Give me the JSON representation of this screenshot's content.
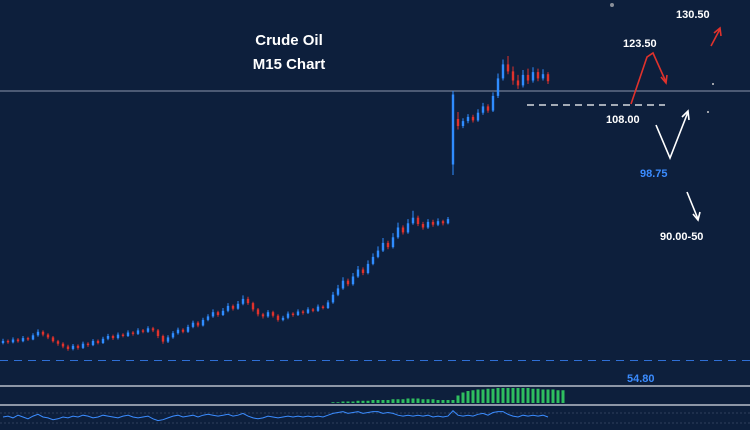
{
  "chart_data": {
    "type": "candlestick",
    "title": "Crude Oil",
    "subtitle": "M15 Chart",
    "colors": {
      "background": "#0d1f3c",
      "bull": "#2f8cff",
      "bear": "#e0322c",
      "arrow_up": "#e0322c",
      "arrow_down": "#ffffff",
      "macd_histogram": "#2fbf5f",
      "indicator_line": "#3b8cff"
    },
    "ylim": [
      30,
      140
    ],
    "candles": [
      {
        "o": 42.0,
        "c": 42.6,
        "h": 43.2,
        "l": 41.6
      },
      {
        "o": 42.6,
        "c": 42.2,
        "h": 43.0,
        "l": 41.8
      },
      {
        "o": 42.2,
        "c": 43.0,
        "h": 43.6,
        "l": 41.9
      },
      {
        "o": 43.0,
        "c": 42.5,
        "h": 43.4,
        "l": 42.1
      },
      {
        "o": 42.5,
        "c": 43.4,
        "h": 44.0,
        "l": 42.2
      },
      {
        "o": 43.4,
        "c": 43.0,
        "h": 43.8,
        "l": 42.6
      },
      {
        "o": 43.0,
        "c": 44.2,
        "h": 44.8,
        "l": 42.8
      },
      {
        "o": 44.2,
        "c": 45.2,
        "h": 45.9,
        "l": 43.8
      },
      {
        "o": 45.2,
        "c": 44.4,
        "h": 45.6,
        "l": 43.9
      },
      {
        "o": 44.4,
        "c": 43.6,
        "h": 44.8,
        "l": 43.1
      },
      {
        "o": 43.6,
        "c": 42.5,
        "h": 44.0,
        "l": 42.1
      },
      {
        "o": 42.5,
        "c": 41.8,
        "h": 42.9,
        "l": 41.2
      },
      {
        "o": 41.8,
        "c": 41.0,
        "h": 42.2,
        "l": 40.5
      },
      {
        "o": 41.0,
        "c": 40.3,
        "h": 41.5,
        "l": 39.8
      },
      {
        "o": 40.3,
        "c": 41.2,
        "h": 41.7,
        "l": 39.9
      },
      {
        "o": 41.2,
        "c": 40.6,
        "h": 41.6,
        "l": 40.1
      },
      {
        "o": 40.6,
        "c": 41.8,
        "h": 42.4,
        "l": 40.3
      },
      {
        "o": 41.8,
        "c": 41.4,
        "h": 42.2,
        "l": 40.9
      },
      {
        "o": 41.4,
        "c": 42.6,
        "h": 43.1,
        "l": 41.1
      },
      {
        "o": 42.6,
        "c": 42.0,
        "h": 43.0,
        "l": 41.6
      },
      {
        "o": 42.0,
        "c": 43.2,
        "h": 43.8,
        "l": 41.7
      },
      {
        "o": 43.2,
        "c": 44.0,
        "h": 44.6,
        "l": 42.8
      },
      {
        "o": 44.0,
        "c": 43.4,
        "h": 44.4,
        "l": 42.9
      },
      {
        "o": 43.4,
        "c": 44.4,
        "h": 45.0,
        "l": 43.0
      },
      {
        "o": 44.4,
        "c": 44.0,
        "h": 44.8,
        "l": 43.6
      },
      {
        "o": 44.0,
        "c": 45.0,
        "h": 45.6,
        "l": 43.7
      },
      {
        "o": 45.0,
        "c": 44.6,
        "h": 45.4,
        "l": 44.1
      },
      {
        "o": 44.6,
        "c": 45.6,
        "h": 46.2,
        "l": 44.3
      },
      {
        "o": 45.6,
        "c": 45.2,
        "h": 46.0,
        "l": 44.8
      },
      {
        "o": 45.2,
        "c": 46.2,
        "h": 46.8,
        "l": 44.9
      },
      {
        "o": 46.2,
        "c": 45.6,
        "h": 46.6,
        "l": 45.1
      },
      {
        "o": 45.6,
        "c": 44.0,
        "h": 46.0,
        "l": 43.4
      },
      {
        "o": 44.0,
        "c": 42.4,
        "h": 44.4,
        "l": 41.8
      },
      {
        "o": 42.4,
        "c": 43.6,
        "h": 44.2,
        "l": 42.0
      },
      {
        "o": 43.6,
        "c": 44.8,
        "h": 45.4,
        "l": 43.2
      },
      {
        "o": 44.8,
        "c": 45.8,
        "h": 46.4,
        "l": 44.4
      },
      {
        "o": 45.8,
        "c": 45.2,
        "h": 46.2,
        "l": 44.8
      },
      {
        "o": 45.2,
        "c": 46.6,
        "h": 47.2,
        "l": 44.9
      },
      {
        "o": 46.6,
        "c": 47.8,
        "h": 48.4,
        "l": 46.2
      },
      {
        "o": 47.8,
        "c": 47.0,
        "h": 48.2,
        "l": 46.5
      },
      {
        "o": 47.0,
        "c": 48.6,
        "h": 49.2,
        "l": 46.7
      },
      {
        "o": 48.6,
        "c": 49.6,
        "h": 50.2,
        "l": 48.2
      },
      {
        "o": 49.6,
        "c": 50.8,
        "h": 51.6,
        "l": 49.2
      },
      {
        "o": 50.8,
        "c": 50.0,
        "h": 51.2,
        "l": 49.5
      },
      {
        "o": 50.0,
        "c": 51.2,
        "h": 52.0,
        "l": 49.7
      },
      {
        "o": 51.2,
        "c": 52.6,
        "h": 53.4,
        "l": 50.8
      },
      {
        "o": 52.6,
        "c": 51.8,
        "h": 53.0,
        "l": 51.3
      },
      {
        "o": 51.8,
        "c": 53.2,
        "h": 54.0,
        "l": 51.5
      },
      {
        "o": 53.2,
        "c": 54.6,
        "h": 55.6,
        "l": 52.8
      },
      {
        "o": 54.6,
        "c": 53.4,
        "h": 55.2,
        "l": 52.9
      },
      {
        "o": 53.4,
        "c": 51.6,
        "h": 53.8,
        "l": 51.0
      },
      {
        "o": 51.6,
        "c": 50.2,
        "h": 52.0,
        "l": 49.6
      },
      {
        "o": 50.2,
        "c": 49.6,
        "h": 50.6,
        "l": 49.0
      },
      {
        "o": 49.6,
        "c": 50.8,
        "h": 51.4,
        "l": 49.2
      },
      {
        "o": 50.8,
        "c": 49.8,
        "h": 51.2,
        "l": 49.3
      },
      {
        "o": 49.8,
        "c": 48.6,
        "h": 50.2,
        "l": 48.1
      },
      {
        "o": 48.6,
        "c": 49.2,
        "h": 49.8,
        "l": 48.2
      },
      {
        "o": 49.2,
        "c": 50.4,
        "h": 51.0,
        "l": 48.8
      },
      {
        "o": 50.4,
        "c": 50.0,
        "h": 50.8,
        "l": 49.5
      },
      {
        "o": 50.0,
        "c": 51.0,
        "h": 51.6,
        "l": 49.7
      },
      {
        "o": 51.0,
        "c": 50.6,
        "h": 51.4,
        "l": 50.1
      },
      {
        "o": 50.6,
        "c": 51.6,
        "h": 52.2,
        "l": 50.3
      },
      {
        "o": 51.6,
        "c": 51.2,
        "h": 52.0,
        "l": 50.8
      },
      {
        "o": 51.2,
        "c": 52.4,
        "h": 53.0,
        "l": 50.9
      },
      {
        "o": 52.4,
        "c": 52.0,
        "h": 52.8,
        "l": 51.6
      },
      {
        "o": 52.0,
        "c": 53.6,
        "h": 54.2,
        "l": 51.7
      },
      {
        "o": 53.6,
        "c": 55.8,
        "h": 56.6,
        "l": 53.2
      },
      {
        "o": 55.8,
        "c": 57.6,
        "h": 58.6,
        "l": 55.4
      },
      {
        "o": 57.6,
        "c": 59.8,
        "h": 60.8,
        "l": 57.2
      },
      {
        "o": 59.8,
        "c": 58.8,
        "h": 60.4,
        "l": 58.2
      },
      {
        "o": 58.8,
        "c": 61.0,
        "h": 62.0,
        "l": 58.4
      },
      {
        "o": 61.0,
        "c": 63.0,
        "h": 64.0,
        "l": 60.6
      },
      {
        "o": 63.0,
        "c": 62.0,
        "h": 63.6,
        "l": 61.4
      },
      {
        "o": 62.0,
        "c": 64.6,
        "h": 65.6,
        "l": 61.6
      },
      {
        "o": 64.6,
        "c": 66.6,
        "h": 67.6,
        "l": 64.2
      },
      {
        "o": 66.6,
        "c": 68.4,
        "h": 69.6,
        "l": 66.2
      },
      {
        "o": 68.4,
        "c": 70.6,
        "h": 72.0,
        "l": 68.0
      },
      {
        "o": 70.6,
        "c": 69.4,
        "h": 71.2,
        "l": 68.8
      },
      {
        "o": 69.4,
        "c": 72.2,
        "h": 73.4,
        "l": 69.0
      },
      {
        "o": 72.2,
        "c": 75.0,
        "h": 76.4,
        "l": 71.8
      },
      {
        "o": 75.0,
        "c": 73.6,
        "h": 75.6,
        "l": 73.0
      },
      {
        "o": 73.6,
        "c": 76.2,
        "h": 77.4,
        "l": 73.2
      },
      {
        "o": 76.2,
        "c": 77.8,
        "h": 79.8,
        "l": 75.8
      },
      {
        "o": 77.8,
        "c": 76.0,
        "h": 78.4,
        "l": 75.4
      },
      {
        "o": 76.0,
        "c": 75.0,
        "h": 76.6,
        "l": 74.4
      },
      {
        "o": 75.0,
        "c": 76.6,
        "h": 77.4,
        "l": 74.6
      },
      {
        "o": 76.6,
        "c": 75.8,
        "h": 77.2,
        "l": 75.2
      },
      {
        "o": 75.8,
        "c": 76.8,
        "h": 77.6,
        "l": 75.4
      },
      {
        "o": 76.8,
        "c": 76.2,
        "h": 77.2,
        "l": 75.6
      },
      {
        "o": 76.2,
        "c": 77.4,
        "h": 78.0,
        "l": 75.9
      },
      {
        "o": 93.0,
        "c": 113.0,
        "h": 114.0,
        "l": 90.0
      },
      {
        "o": 106.0,
        "c": 104.0,
        "h": 108.0,
        "l": 103.0
      },
      {
        "o": 104.0,
        "c": 105.4,
        "h": 106.2,
        "l": 103.4
      },
      {
        "o": 105.4,
        "c": 106.6,
        "h": 107.4,
        "l": 104.8
      },
      {
        "o": 106.6,
        "c": 105.6,
        "h": 107.2,
        "l": 105.0
      },
      {
        "o": 105.6,
        "c": 107.8,
        "h": 108.8,
        "l": 105.2
      },
      {
        "o": 107.8,
        "c": 109.6,
        "h": 110.6,
        "l": 107.2
      },
      {
        "o": 109.6,
        "c": 108.4,
        "h": 110.2,
        "l": 107.8
      },
      {
        "o": 108.4,
        "c": 112.6,
        "h": 113.6,
        "l": 108.0
      },
      {
        "o": 112.6,
        "c": 117.6,
        "h": 119.0,
        "l": 112.0
      },
      {
        "o": 117.6,
        "c": 121.6,
        "h": 123.0,
        "l": 117.0
      },
      {
        "o": 121.6,
        "c": 119.6,
        "h": 124.0,
        "l": 118.8
      },
      {
        "o": 119.6,
        "c": 117.0,
        "h": 121.0,
        "l": 115.8
      },
      {
        "o": 117.0,
        "c": 115.6,
        "h": 118.6,
        "l": 114.6
      },
      {
        "o": 115.6,
        "c": 118.6,
        "h": 120.0,
        "l": 115.0
      },
      {
        "o": 118.6,
        "c": 117.0,
        "h": 120.4,
        "l": 116.0
      },
      {
        "o": 117.0,
        "c": 119.4,
        "h": 120.8,
        "l": 116.4
      },
      {
        "o": 119.4,
        "c": 117.6,
        "h": 120.4,
        "l": 116.8
      },
      {
        "o": 117.6,
        "c": 118.8,
        "h": 120.2,
        "l": 117.0
      },
      {
        "o": 118.8,
        "c": 116.8,
        "h": 119.4,
        "l": 116.0
      }
    ],
    "levels": [
      {
        "label": "130.50",
        "value": 130.5,
        "color": "white"
      },
      {
        "label": "123.50",
        "value": 123.5,
        "color": "white"
      },
      {
        "label": "108.00",
        "value": 108.0,
        "color": "white"
      },
      {
        "label": "98.75",
        "value": 98.75,
        "color": "blue"
      },
      {
        "label": "90.00-50",
        "value": 90.0,
        "color": "white"
      }
    ],
    "indicator_label": "54.80",
    "reference_lines": {
      "solid": 114.0,
      "dashed_resistance": 110.0,
      "dashed_support": 37.0
    },
    "macd_histogram": [
      0,
      0,
      0,
      0,
      0,
      0,
      0,
      0,
      0,
      0,
      0,
      0,
      0,
      0,
      0,
      0,
      0,
      0,
      0,
      0,
      0,
      0,
      0,
      0,
      0,
      0,
      0,
      0,
      0,
      0,
      0,
      0,
      0,
      0,
      0,
      0,
      0,
      0,
      0,
      0,
      0,
      0,
      0,
      0,
      0,
      0,
      0,
      0,
      0,
      0,
      0,
      0,
      0,
      0,
      0,
      0,
      0,
      0,
      0,
      0,
      0,
      0,
      0,
      0,
      0,
      0,
      0.05,
      0.05,
      0.1,
      0.1,
      0.1,
      0.15,
      0.15,
      0.15,
      0.2,
      0.2,
      0.2,
      0.2,
      0.25,
      0.25,
      0.25,
      0.3,
      0.3,
      0.3,
      0.25,
      0.25,
      0.25,
      0.2,
      0.2,
      0.2,
      0.2,
      0.5,
      0.7,
      0.8,
      0.85,
      0.9,
      0.9,
      0.95,
      0.95,
      1.0,
      1.0,
      1.0,
      1.0,
      1.0,
      1.0,
      1.0,
      0.95,
      0.95,
      0.9,
      0.9,
      0.9,
      0.85,
      0.85
    ],
    "oscillator": [
      0.5,
      0.55,
      0.45,
      0.6,
      0.5,
      0.4,
      0.55,
      0.65,
      0.5,
      0.45,
      0.35,
      0.4,
      0.5,
      0.45,
      0.55,
      0.5,
      0.6,
      0.55,
      0.45,
      0.5,
      0.6,
      0.55,
      0.5,
      0.45,
      0.55,
      0.6,
      0.5,
      0.45,
      0.5,
      0.55,
      0.4,
      0.3,
      0.35,
      0.45,
      0.55,
      0.6,
      0.5,
      0.55,
      0.6,
      0.5,
      0.6,
      0.65,
      0.6,
      0.55,
      0.6,
      0.65,
      0.55,
      0.6,
      0.7,
      0.55,
      0.45,
      0.4,
      0.45,
      0.55,
      0.5,
      0.45,
      0.5,
      0.55,
      0.5,
      0.55,
      0.5,
      0.55,
      0.5,
      0.55,
      0.5,
      0.6,
      0.7,
      0.75,
      0.8,
      0.7,
      0.75,
      0.8,
      0.7,
      0.75,
      0.8,
      0.8,
      0.7,
      0.75,
      0.7,
      0.6,
      0.55,
      0.6,
      0.55,
      0.6,
      0.55,
      0.6,
      0.5,
      0.55,
      0.5,
      0.55,
      0.85,
      0.6,
      0.55,
      0.6,
      0.55,
      0.65,
      0.7,
      0.6,
      0.75,
      0.8,
      0.8,
      0.65,
      0.55,
      0.5,
      0.6,
      0.55,
      0.6,
      0.55,
      0.6,
      0.5
    ]
  }
}
